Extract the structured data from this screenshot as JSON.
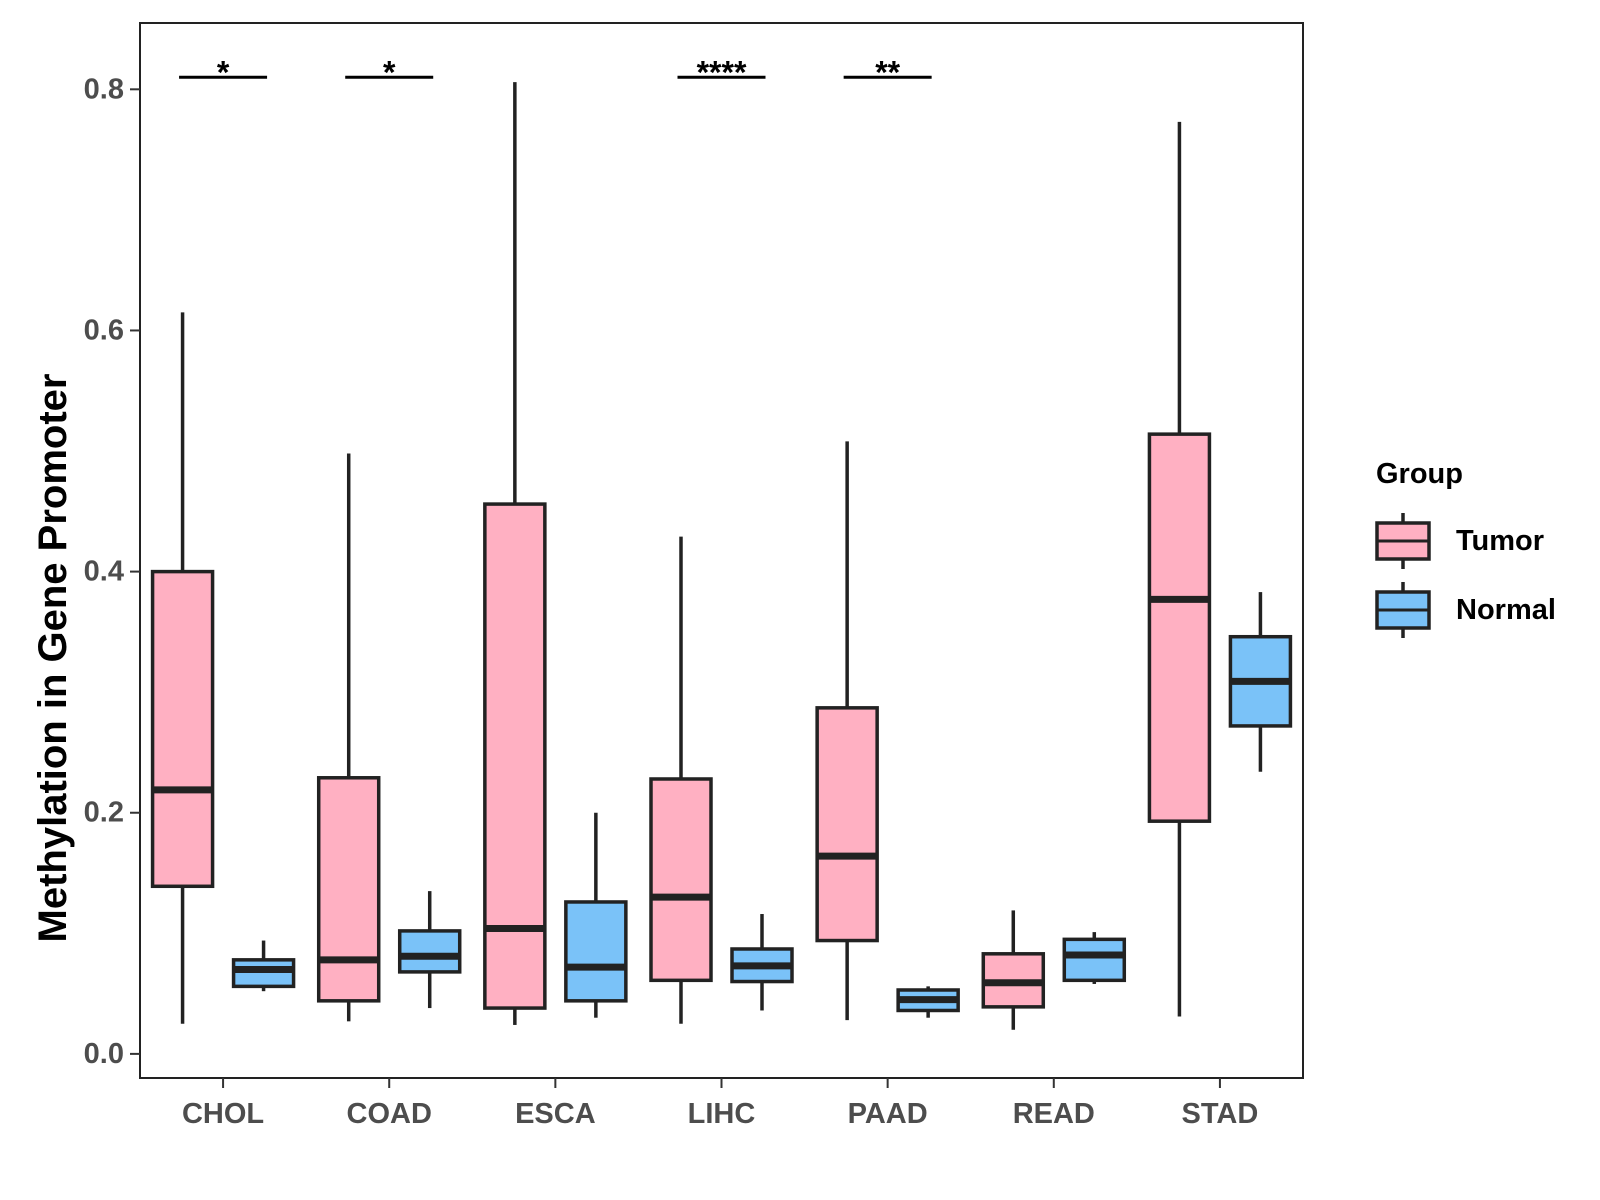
{
  "chart_data": {
    "type": "boxplot",
    "title": "",
    "xlabel": "",
    "ylabel": "Methylation in Gene Promoter",
    "ylim": [
      -0.02,
      0.855
    ],
    "yticks": [
      "0.0",
      "0.2",
      "0.4",
      "0.6",
      "0.8"
    ],
    "categories": [
      "CHOL",
      "COAD",
      "ESCA",
      "LIHC",
      "PAAD",
      "READ",
      "STAD"
    ],
    "legend": {
      "title": "Group",
      "position": "right",
      "entries": [
        "Tumor",
        "Normal"
      ]
    },
    "series": [
      {
        "name": "Tumor",
        "color": "#FFB0C2",
        "boxes": [
          {
            "min": 0.025,
            "q1": 0.139,
            "median": 0.219,
            "q3": 0.4,
            "max": 0.615
          },
          {
            "min": 0.027,
            "q1": 0.044,
            "median": 0.078,
            "q3": 0.229,
            "max": 0.498
          },
          {
            "min": 0.024,
            "q1": 0.038,
            "median": 0.104,
            "q3": 0.456,
            "max": 0.806
          },
          {
            "min": 0.025,
            "q1": 0.061,
            "median": 0.13,
            "q3": 0.228,
            "max": 0.429
          },
          {
            "min": 0.028,
            "q1": 0.094,
            "median": 0.164,
            "q3": 0.287,
            "max": 0.508
          },
          {
            "min": 0.02,
            "q1": 0.039,
            "median": 0.059,
            "q3": 0.083,
            "max": 0.119
          },
          {
            "min": 0.031,
            "q1": 0.193,
            "median": 0.377,
            "q3": 0.514,
            "max": 0.773
          }
        ]
      },
      {
        "name": "Normal",
        "color": "#7AC2F8",
        "boxes": [
          {
            "min": 0.052,
            "q1": 0.056,
            "median": 0.07,
            "q3": 0.078,
            "max": 0.094
          },
          {
            "min": 0.038,
            "q1": 0.068,
            "median": 0.081,
            "q3": 0.102,
            "max": 0.135
          },
          {
            "min": 0.03,
            "q1": 0.044,
            "median": 0.072,
            "q3": 0.126,
            "max": 0.2
          },
          {
            "min": 0.036,
            "q1": 0.06,
            "median": 0.073,
            "q3": 0.087,
            "max": 0.116
          },
          {
            "min": 0.03,
            "q1": 0.036,
            "median": 0.045,
            "q3": 0.053,
            "max": 0.056
          },
          {
            "min": 0.058,
            "q1": 0.061,
            "median": 0.082,
            "q3": 0.095,
            "max": 0.101
          },
          {
            "min": 0.234,
            "q1": 0.272,
            "median": 0.309,
            "q3": 0.346,
            "max": 0.383
          }
        ]
      }
    ],
    "significance": [
      {
        "category": "CHOL",
        "label": "*"
      },
      {
        "category": "COAD",
        "label": "*"
      },
      {
        "category": "LIHC",
        "label": "****"
      },
      {
        "category": "PAAD",
        "label": "**"
      }
    ],
    "significance_level": 0.81
  }
}
